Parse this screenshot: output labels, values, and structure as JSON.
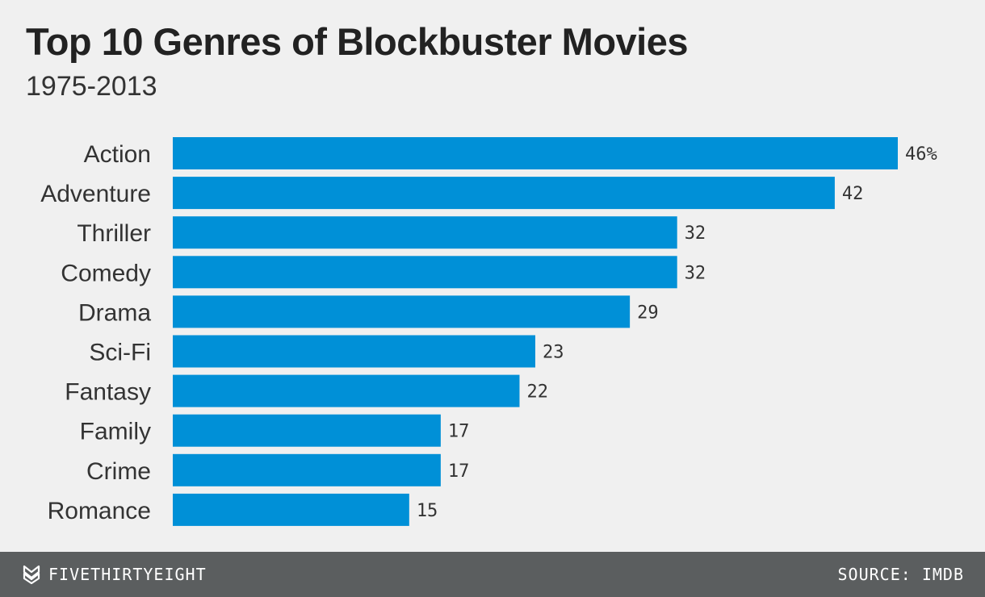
{
  "header": {
    "title": "Top 10 Genres of Blockbuster Movies",
    "subtitle": "1975-2013"
  },
  "footer": {
    "brand": "FIVETHIRTYEIGHT",
    "brand_icon": "fivethirtyeight-logo-icon",
    "source": "SOURCE: IMDB"
  },
  "colors": {
    "bar": "#0090d7",
    "background": "#f0f0f0",
    "footer": "#5b5e5f",
    "text": "#333333"
  },
  "chart_data": {
    "type": "bar",
    "orientation": "horizontal",
    "title": "Top 10 Genres of Blockbuster Movies",
    "subtitle": "1975-2013",
    "categories": [
      "Action",
      "Adventure",
      "Thriller",
      "Comedy",
      "Drama",
      "Sci-Fi",
      "Fantasy",
      "Family",
      "Crime",
      "Romance"
    ],
    "values": [
      46,
      42,
      32,
      32,
      29,
      23,
      22,
      17,
      17,
      15
    ],
    "value_labels": [
      "46%",
      "42",
      "32",
      "32",
      "29",
      "23",
      "22",
      "17",
      "17",
      "15"
    ],
    "unit": "%",
    "xlim": [
      0,
      46
    ],
    "grid": false,
    "legend": "none",
    "source": "SOURCE: IMDB"
  }
}
